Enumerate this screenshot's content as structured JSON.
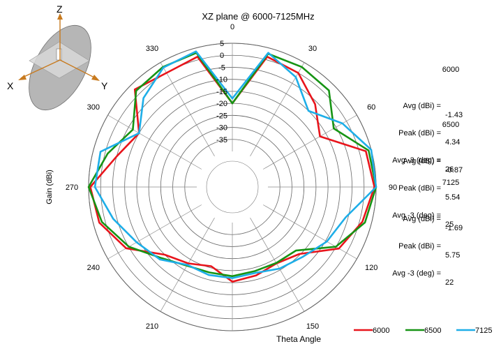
{
  "chart_data": {
    "type": "polar-line",
    "title": "XZ plane @ 6000-7125MHz",
    "radial_label": "Gain (dBi)",
    "angular_label": "Theta  Angle",
    "radial_range": [
      -40,
      5
    ],
    "radial_ticks": [
      "5",
      "0",
      "-5",
      "-10",
      "-15",
      "-20",
      "-25",
      "-30",
      "-35"
    ],
    "radial_tick_values": [
      5,
      0,
      -5,
      -10,
      -15,
      -20,
      -25,
      -30,
      -35
    ],
    "angle_ticks": [
      "0",
      "30",
      "60",
      "90",
      "120",
      "150",
      "180",
      "210",
      "240",
      "270",
      "300",
      "330"
    ],
    "angle_tick_values": [
      0,
      30,
      60,
      90,
      120,
      150,
      180,
      210,
      240,
      270,
      300,
      330
    ],
    "grid": true,
    "legend_position": "bottom-right",
    "theta": [
      0,
      15,
      30,
      45,
      60,
      75,
      90,
      105,
      120,
      135,
      150,
      165,
      180,
      195,
      210,
      225,
      240,
      255,
      270,
      285,
      300,
      315,
      330,
      345
    ],
    "series": [
      {
        "name": "6000",
        "color": "#e8141b",
        "values": [
          -20,
          1.3,
          0.0,
          -6.1,
          -12.7,
          2.7,
          4.3,
          1.2,
          -3.6,
          -15.4,
          -18.1,
          -16.7,
          -15.4,
          -20.7,
          -18.1,
          -15.0,
          -3.8,
          2.5,
          4.3,
          -5.1,
          -10.0,
          2.6,
          0.0,
          1.3
        ]
      },
      {
        "name": "6500",
        "color": "#169414",
        "values": [
          -20,
          2.6,
          2.9,
          2.0,
          -6.1,
          3.9,
          5.5,
          2.3,
          -5.1,
          -17.4,
          -18.3,
          -18.6,
          -17.7,
          -18.0,
          -17.0,
          -13.0,
          -5.1,
          1.4,
          5.5,
          -1.1,
          -7.0,
          1.8,
          2.9,
          3.0
        ]
      },
      {
        "name": "7125",
        "color": "#1eaee8",
        "values": [
          -18,
          3.0,
          -2.0,
          -10.0,
          -1.9,
          5.4,
          5.6,
          -6.0,
          -9.4,
          -13.6,
          -15.6,
          -17.8,
          -16.9,
          -16.9,
          -17.4,
          -12.2,
          -8.8,
          -3.5,
          2.4,
          2.0,
          -10.0,
          -2.5,
          2.6,
          3.6
        ]
      }
    ]
  },
  "stats": [
    {
      "freq": "6000",
      "avg_label": "Avg (dBi) =",
      "avg": "-1.43",
      "peak_label": "Peak (dBi) =",
      "peak": "4.34",
      "beam_label": "Avg -3 (deg) =",
      "beam": "26"
    },
    {
      "freq": "6500",
      "avg_label": "Avg (dBi) =",
      "avg": "-0.87",
      "peak_label": "Peak (dBi) =",
      "peak": "5.54",
      "beam_label": "Avg -3 (deg) =",
      "beam": "25"
    },
    {
      "freq": "7125",
      "avg_label": "Avg (dBi) =",
      "avg": "-1.69",
      "peak_label": "Peak (dBi) =",
      "peak": "5.75",
      "beam_label": "Avg -3 (deg) =",
      "beam": "22"
    }
  ],
  "axes_icon": {
    "x": "X",
    "y": "Y",
    "z": "Z"
  }
}
